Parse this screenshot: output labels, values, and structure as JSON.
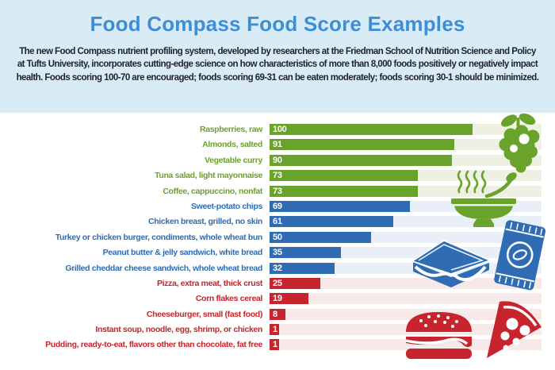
{
  "header": {
    "title": "Food Compass Food Score Examples",
    "description": "The new Food Compass nutrient profiling system, developed by researchers at the Friedman School of Nutrition Science and Policy at Tufts University, incorporates cutting-edge science on how characteristics of more than 8,000 foods positively or negatively impact health. Foods scoring 100-70 are encouraged; foods scoring 69-31 can be eaten moderately;  foods scoring 30-1 should be minimized."
  },
  "chart_data": {
    "type": "bar",
    "orientation": "horizontal",
    "title": "Food Compass Food Score Examples",
    "xlabel": "",
    "ylabel": "",
    "xlim": [
      0,
      100
    ],
    "grid": false,
    "legend_note": {
      "encouraged": "Foods scoring 100-70 are encouraged",
      "moderate": "Foods scoring 69-31 can be eaten moderately",
      "minimize": "Foods scoring 30-1 should be minimized"
    },
    "items": [
      {
        "label": "Raspberries, raw",
        "value": 100,
        "group": "encouraged"
      },
      {
        "label": "Almonds, salted",
        "value": 91,
        "group": "encouraged"
      },
      {
        "label": "Vegetable curry",
        "value": 90,
        "group": "encouraged"
      },
      {
        "label": "Tuna salad, light mayonnaise",
        "value": 73,
        "group": "encouraged"
      },
      {
        "label": "Coffee, cappuccino, nonfat",
        "value": 73,
        "group": "encouraged"
      },
      {
        "label": "Sweet-potato chips",
        "value": 69,
        "group": "moderate"
      },
      {
        "label": "Chicken breast, grilled, no skin",
        "value": 61,
        "group": "moderate"
      },
      {
        "label": "Turkey or chicken burger, condiments, whole wheat bun",
        "value": 50,
        "group": "moderate"
      },
      {
        "label": "Peanut butter & jelly sandwich, white bread",
        "value": 35,
        "group": "moderate"
      },
      {
        "label": "Grilled cheddar cheese sandwich, whole wheat bread",
        "value": 32,
        "group": "moderate"
      },
      {
        "label": "Pizza, extra meat, thick crust",
        "value": 25,
        "group": "minimize"
      },
      {
        "label": "Corn flakes cereal",
        "value": 19,
        "group": "minimize"
      },
      {
        "label": "Cheeseburger, small (fast food)",
        "value": 8,
        "group": "minimize"
      },
      {
        "label": "Instant soup, noodle, egg, shrimp, or chicken",
        "value": 1,
        "group": "minimize"
      },
      {
        "label": "Pudding, ready-to-eat, flavors other than chocolate, fat free",
        "value": 1,
        "group": "minimize"
      }
    ],
    "colors": {
      "encouraged": "#6aa32b",
      "moderate": "#2f6cb3",
      "minimize": "#c8242e",
      "encouraged_track": "#eef0e4",
      "moderate_track": "#e9eff6",
      "minimize_track": "#f8e9e9",
      "title": "#3e8ed6",
      "header_bg": "#d9ecf6",
      "description_text": "#1e242a"
    },
    "icons": [
      "raspberries",
      "soup-bowl",
      "chips-bag",
      "sandwich",
      "hamburger",
      "pizza-slice"
    ]
  }
}
